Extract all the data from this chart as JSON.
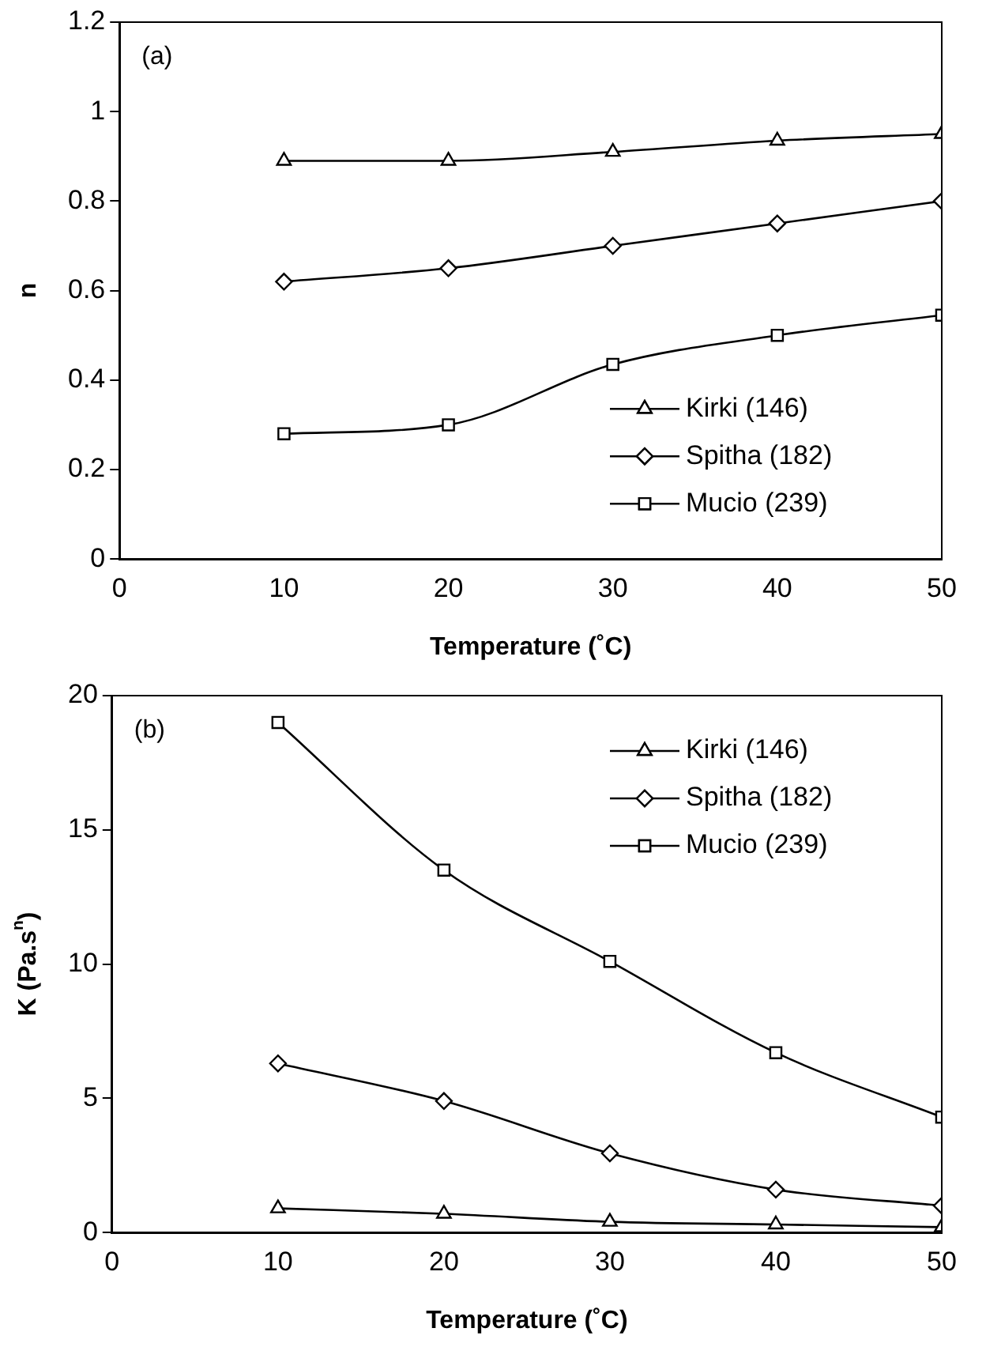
{
  "chart_data": [
    {
      "type": "line",
      "xlabel": "Temperature (˚C)",
      "ylabel": "n",
      "annotations": [
        "(a)"
      ],
      "x": [
        10,
        20,
        30,
        40,
        50
      ],
      "xlim": [
        0,
        50
      ],
      "xticks": [
        0,
        10,
        20,
        30,
        40,
        50
      ],
      "ylim": [
        0,
        1.2
      ],
      "yticks": [
        {
          "value": 0,
          "label": "0"
        },
        0.2,
        0.4,
        0.6,
        0.8,
        {
          "value": 1,
          "label": "1"
        },
        1.2
      ],
      "grid": false,
      "legend": "bottom right",
      "line_style": "solid",
      "series": [
        {
          "name": "Kirki (146)",
          "color": "#000000",
          "marker": "triangle",
          "values": [
            0.89,
            0.89,
            0.91,
            0.935,
            0.95
          ]
        },
        {
          "name": "Spitha (182)",
          "color": "#000000",
          "marker": "diamond",
          "values": [
            0.62,
            0.65,
            0.7,
            0.75,
            0.8
          ]
        },
        {
          "name": "Mucio (239)",
          "color": "#000000",
          "marker": "square",
          "values": [
            0.28,
            0.3,
            0.435,
            0.5,
            0.545
          ]
        }
      ]
    },
    {
      "type": "line",
      "xlabel": "Temperature (˚C)",
      "ylabel": "K (Pa.s$^{n}$)",
      "annotations": [
        "(b)"
      ],
      "x": [
        10,
        20,
        30,
        40,
        50
      ],
      "xlim": [
        0,
        50
      ],
      "xticks": [
        0,
        10,
        20,
        30,
        40,
        50
      ],
      "ylim": [
        0,
        20
      ],
      "yticks": [
        0,
        5,
        10,
        15,
        20
      ],
      "grid": false,
      "legend": "top right",
      "line_style": "solid",
      "series": [
        {
          "name": "Kirki (146)",
          "color": "#000000",
          "marker": "triangle",
          "values": [
            0.9,
            0.7,
            0.4,
            0.3,
            0.2
          ]
        },
        {
          "name": "Spitha (182)",
          "color": "#000000",
          "marker": "diamond",
          "values": [
            6.3,
            4.9,
            2.95,
            1.6,
            1.0
          ]
        },
        {
          "name": "Mucio (239)",
          "color": "#000000",
          "marker": "square",
          "values": [
            19,
            13.5,
            10.1,
            6.7,
            4.3
          ]
        }
      ]
    }
  ]
}
